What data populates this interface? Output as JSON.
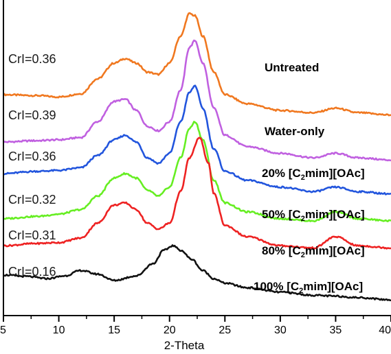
{
  "chart_data": {
    "type": "line",
    "xlabel": "2-Theta",
    "ylabel": "",
    "xlim": [
      5,
      40
    ],
    "x_ticks": [
      "5",
      "10",
      "15",
      "20",
      "25",
      "30",
      "35",
      "40"
    ],
    "grid": false,
    "legend": "none",
    "series": [
      {
        "name": "Untreated",
        "crl": "CrI=0.36",
        "color": "#f07820",
        "x": [
          5,
          8,
          10,
          12,
          13.5,
          15,
          16,
          17,
          18,
          19,
          20,
          21,
          21.8,
          22.3,
          23,
          24,
          25,
          27,
          30,
          33,
          35,
          37,
          40
        ],
        "y": [
          4.9,
          4.88,
          4.85,
          4.92,
          5.25,
          5.6,
          5.7,
          5.6,
          5.4,
          5.35,
          5.6,
          6.2,
          6.7,
          6.65,
          6.2,
          5.4,
          4.9,
          4.7,
          4.55,
          4.5,
          4.6,
          4.5,
          4.45
        ]
      },
      {
        "name": "Water-only",
        "crl": "CrI=0.39",
        "color": "#c060e0",
        "x": [
          5,
          8,
          10,
          12,
          13.5,
          15,
          16,
          17,
          18,
          19,
          20,
          21,
          21.8,
          22.3,
          23,
          24,
          25,
          27,
          30,
          33,
          35,
          37,
          40
        ],
        "y": [
          3.85,
          3.88,
          3.9,
          3.95,
          4.3,
          4.75,
          4.8,
          4.55,
          4.2,
          4.1,
          4.3,
          5.0,
          5.95,
          6.1,
          5.6,
          4.6,
          4.0,
          3.75,
          3.6,
          3.5,
          3.6,
          3.5,
          3.45
        ]
      },
      {
        "name": "20% [C2mim][OAc]",
        "crl": "CrI=0.36",
        "color": "#2255dd",
        "x": [
          5,
          8,
          10,
          12,
          13.5,
          15,
          16,
          17,
          18,
          19,
          20,
          21,
          21.8,
          22.3,
          23,
          24,
          25,
          27,
          30,
          33,
          35,
          37,
          40
        ],
        "y": [
          3.15,
          3.2,
          3.22,
          3.28,
          3.55,
          3.9,
          4.0,
          3.85,
          3.5,
          3.38,
          3.6,
          4.3,
          4.95,
          5.1,
          4.6,
          3.7,
          3.2,
          3.0,
          2.85,
          2.75,
          2.85,
          2.75,
          2.7
        ]
      },
      {
        "name": "50% [C2mim][OAc]",
        "crl": "CrI=0.32",
        "color": "#66ee22",
        "x": [
          5,
          8,
          10,
          12,
          13.5,
          15,
          16,
          17,
          18,
          19,
          20,
          21,
          21.8,
          22.3,
          23,
          24,
          25,
          27,
          30,
          33,
          35,
          37,
          40
        ],
        "y": [
          2.15,
          2.2,
          2.25,
          2.35,
          2.65,
          3.05,
          3.15,
          3.05,
          2.78,
          2.65,
          2.85,
          3.5,
          4.15,
          4.3,
          3.9,
          3.0,
          2.5,
          2.3,
          2.15,
          2.1,
          2.3,
          2.15,
          2.1
        ]
      },
      {
        "name": "80% [C2mim][OAc]",
        "crl": "CrI=0.31",
        "color": "#ee2222",
        "x": [
          5,
          8,
          10,
          12,
          13.5,
          15,
          16,
          17,
          18,
          19,
          20,
          21,
          21.8,
          22.7,
          23.5,
          24,
          25,
          27,
          30,
          33,
          35,
          37,
          40
        ],
        "y": [
          1.55,
          1.6,
          1.62,
          1.72,
          2.05,
          2.45,
          2.5,
          2.35,
          2.05,
          1.92,
          2.05,
          2.75,
          3.5,
          3.95,
          3.4,
          2.7,
          2.0,
          1.75,
          1.55,
          1.5,
          1.75,
          1.55,
          1.5
        ]
      },
      {
        "name": "100% [C2mim][OAc]",
        "crl": "CrI=0.16",
        "color": "#111111",
        "x": [
          5,
          7,
          9,
          10.5,
          12,
          13.5,
          15,
          17,
          18.5,
          19.5,
          20.3,
          21,
          22,
          23,
          24,
          25,
          27,
          30,
          33,
          35,
          37,
          40
        ],
        "y": [
          0.9,
          0.87,
          0.82,
          0.88,
          1.0,
          0.92,
          0.78,
          0.88,
          1.15,
          1.45,
          1.55,
          1.45,
          1.25,
          1.0,
          0.82,
          0.72,
          0.62,
          0.52,
          0.45,
          0.43,
          0.4,
          0.35
        ]
      }
    ]
  }
}
